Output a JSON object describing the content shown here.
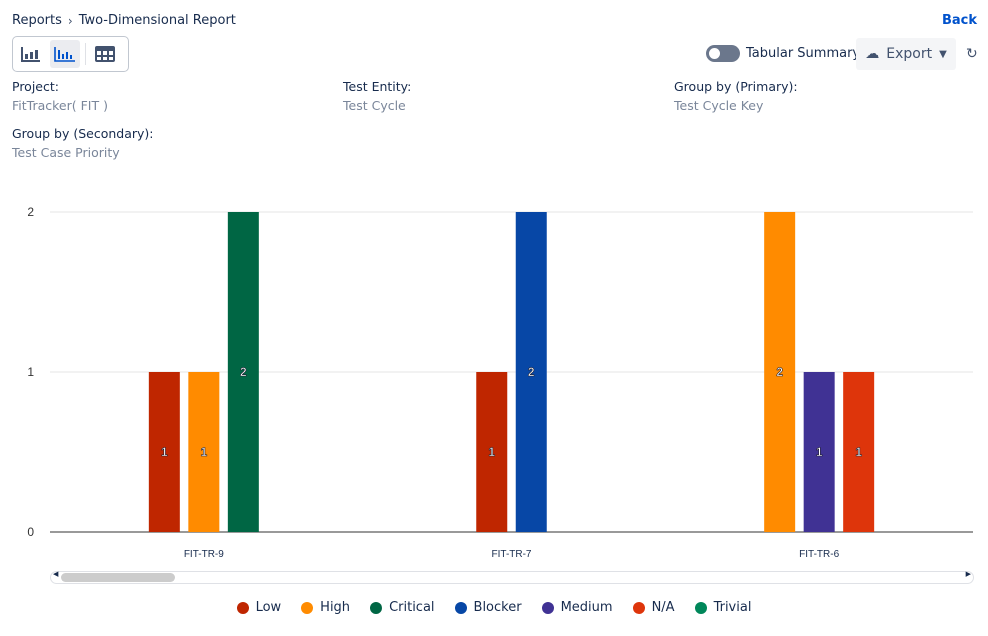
{
  "breadcrumb": {
    "parent": "Reports",
    "current": "Two-Dimensional Report"
  },
  "back_label": "Back",
  "view_switcher": [
    "bar-chart-icon",
    "grouped-bar-chart-icon",
    "table-icon"
  ],
  "toggle": {
    "label": "Tabular Summary",
    "on": false
  },
  "export_label": "Export",
  "fields": [
    {
      "label": "Project:",
      "value": "FitTracker( FIT )"
    },
    {
      "label": "Test Entity:",
      "value": "Test Cycle"
    },
    {
      "label": "Group by (Primary):",
      "value": "Test Cycle Key"
    },
    {
      "label": "Group by (Secondary):",
      "value": "Test Case Priority"
    }
  ],
  "chart_data": {
    "type": "bar",
    "categories": [
      "FIT-TR-9",
      "FIT-TR-7",
      "FIT-TR-6"
    ],
    "ylim": [
      0,
      2
    ],
    "yticks": [
      "0",
      "1",
      "2"
    ],
    "grid": true,
    "legend": "bottom",
    "series": [
      {
        "name": "Low",
        "color": "#bf2600",
        "values": [
          1,
          1,
          0
        ]
      },
      {
        "name": "High",
        "color": "#ff8b00",
        "values": [
          1,
          0,
          2
        ]
      },
      {
        "name": "Critical",
        "color": "#006644",
        "values": [
          2,
          0,
          0
        ]
      },
      {
        "name": "Blocker",
        "color": "#0747a6",
        "values": [
          0,
          2,
          0
        ]
      },
      {
        "name": "Medium",
        "color": "#403294",
        "values": [
          0,
          0,
          1
        ]
      },
      {
        "name": "N/A",
        "color": "#de350b",
        "values": [
          0,
          0,
          1
        ]
      },
      {
        "name": "Trivial",
        "color": "#00875a",
        "values": [
          0,
          0,
          0
        ]
      }
    ]
  }
}
